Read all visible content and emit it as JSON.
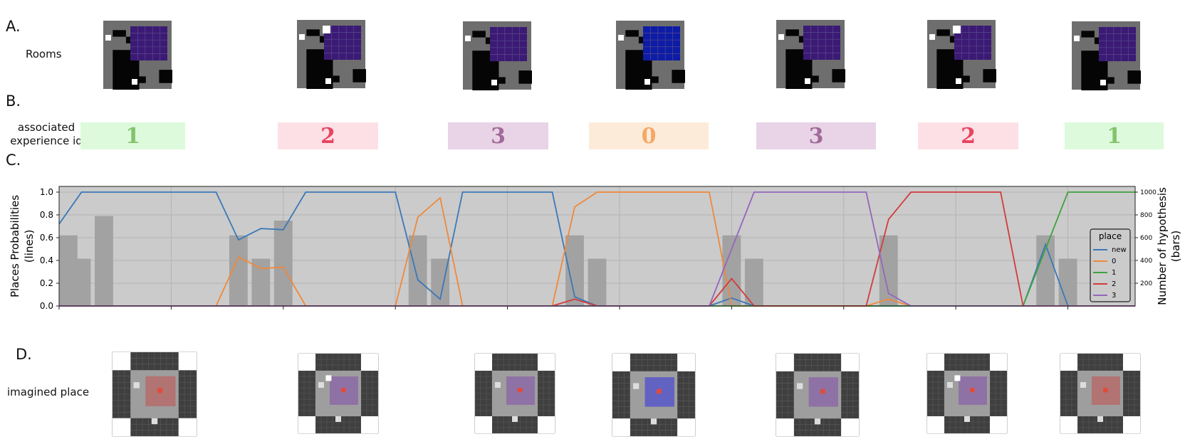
{
  "labels": {
    "section_a": "A.",
    "section_b": "B.",
    "section_c": "C.",
    "section_d": "D.",
    "rooms": "Rooms",
    "experience_line1": "associated",
    "experience_line2": "experience id",
    "imagined": "imagined place"
  },
  "experience_ids": [
    {
      "id": "1",
      "bg": "#ddfadd",
      "fg": "#84c46a"
    },
    {
      "id": "2",
      "bg": "#fde0e6",
      "fg": "#e8455f"
    },
    {
      "id": "3",
      "bg": "#e8d4e6",
      "fg": "#a16a9a"
    },
    {
      "id": "0",
      "bg": "#fdebd9",
      "fg": "#f4a866"
    },
    {
      "id": "3",
      "bg": "#e8d4e6",
      "fg": "#a16a9a"
    },
    {
      "id": "2",
      "bg": "#fde0e6",
      "fg": "#e8455f"
    },
    {
      "id": "1",
      "bg": "#ddfadd",
      "fg": "#84c46a"
    }
  ],
  "rooms": [
    {
      "floor_color": "#3b1a75"
    },
    {
      "floor_color": "#3b1a75"
    },
    {
      "floor_color": "#3b1a75"
    },
    {
      "floor_color": "#0c1ca6"
    },
    {
      "floor_color": "#3b1a75"
    },
    {
      "floor_color": "#3b1a75"
    },
    {
      "floor_color": "#3b1a75"
    }
  ],
  "imagined_places": [
    {
      "tint": "#b56b6b"
    },
    {
      "tint": "#8c6aa6"
    },
    {
      "tint": "#8c6aa6"
    },
    {
      "tint": "#5757c8"
    },
    {
      "tint": "#8c6aa6"
    },
    {
      "tint": "#8c6aa6"
    },
    {
      "tint": "#b56b6b"
    }
  ],
  "chart_data": {
    "type": "line",
    "ylabel_left": [
      "Places Probabilities",
      "(lines)"
    ],
    "ylabel_right": [
      "Number of hypothesis",
      "(bars)"
    ],
    "ylim_left": [
      0,
      1.05
    ],
    "ylim_right": [
      0,
      1050
    ],
    "left_ticks": [
      "0.0",
      "0.2",
      "0.4",
      "0.6",
      "0.8",
      "1.0"
    ],
    "right_ticks": [
      "200",
      "400",
      "600",
      "800",
      "1000"
    ],
    "xlim": [
      0,
      48
    ],
    "grid": true,
    "legend": {
      "title": "place",
      "position": "right"
    },
    "series": [
      {
        "name": "new",
        "color": "#3a78b8",
        "points": [
          [
            0,
            0.72
          ],
          [
            1,
            1
          ],
          [
            7,
            1
          ],
          [
            8,
            0.58
          ],
          [
            9,
            0.68
          ],
          [
            10,
            0.67
          ],
          [
            11,
            1
          ],
          [
            15,
            1
          ],
          [
            16,
            0.23
          ],
          [
            17,
            0.06
          ],
          [
            18,
            1
          ],
          [
            22,
            1
          ],
          [
            23,
            0.08
          ],
          [
            24,
            0.0
          ],
          [
            29,
            0.0
          ],
          [
            30,
            0.07
          ],
          [
            31,
            0.0
          ],
          [
            43,
            0.0
          ],
          [
            44,
            0.54
          ],
          [
            45,
            0.0
          ],
          [
            48,
            0.0
          ]
        ]
      },
      {
        "name": "0",
        "color": "#f0883a",
        "points": [
          [
            0,
            0
          ],
          [
            7,
            0
          ],
          [
            8,
            0.43
          ],
          [
            9,
            0.33
          ],
          [
            10,
            0.34
          ],
          [
            11,
            0
          ],
          [
            15,
            0
          ],
          [
            16,
            0.78
          ],
          [
            17,
            0.95
          ],
          [
            18,
            0
          ],
          [
            22,
            0
          ],
          [
            23,
            0.87
          ],
          [
            24,
            1
          ],
          [
            29,
            1
          ],
          [
            30,
            0.0
          ],
          [
            36,
            0
          ],
          [
            37,
            0.06
          ],
          [
            38,
            0
          ],
          [
            48,
            0
          ]
        ]
      },
      {
        "name": "1",
        "color": "#3ea23e",
        "points": [
          [
            0,
            0
          ],
          [
            29,
            0
          ],
          [
            30,
            0.0
          ],
          [
            43,
            0
          ],
          [
            44,
            0.5
          ],
          [
            45,
            1
          ],
          [
            48,
            1
          ]
        ]
      },
      {
        "name": "2",
        "color": "#d33a3a",
        "points": [
          [
            0,
            0
          ],
          [
            22,
            0
          ],
          [
            23,
            0.06
          ],
          [
            24,
            0
          ],
          [
            29,
            0
          ],
          [
            30,
            0.24
          ],
          [
            31,
            0
          ],
          [
            36,
            0
          ],
          [
            37,
            0.76
          ],
          [
            38,
            1
          ],
          [
            42,
            1
          ],
          [
            43,
            0
          ],
          [
            48,
            0
          ]
        ]
      },
      {
        "name": "3",
        "color": "#9466bd",
        "points": [
          [
            0,
            0
          ],
          [
            29,
            0
          ],
          [
            30,
            0.5
          ],
          [
            31,
            1
          ],
          [
            36,
            1
          ],
          [
            37,
            0.11
          ],
          [
            38,
            0
          ],
          [
            48,
            0
          ]
        ]
      }
    ],
    "bars": [
      {
        "x": 0.0,
        "value": 620
      },
      {
        "x": 1.0,
        "value": 415
      },
      {
        "x": 2.0,
        "value": 790
      },
      {
        "x": 8.0,
        "value": 620
      },
      {
        "x": 9.0,
        "value": 415
      },
      {
        "x": 10.0,
        "value": 750
      },
      {
        "x": 16.0,
        "value": 620
      },
      {
        "x": 17.0,
        "value": 415
      },
      {
        "x": 23.0,
        "value": 620
      },
      {
        "x": 24.0,
        "value": 415
      },
      {
        "x": 30.0,
        "value": 620
      },
      {
        "x": 31.0,
        "value": 415
      },
      {
        "x": 37.0,
        "value": 620
      },
      {
        "x": 44.0,
        "value": 620
      },
      {
        "x": 45.0,
        "value": 415
      }
    ]
  }
}
